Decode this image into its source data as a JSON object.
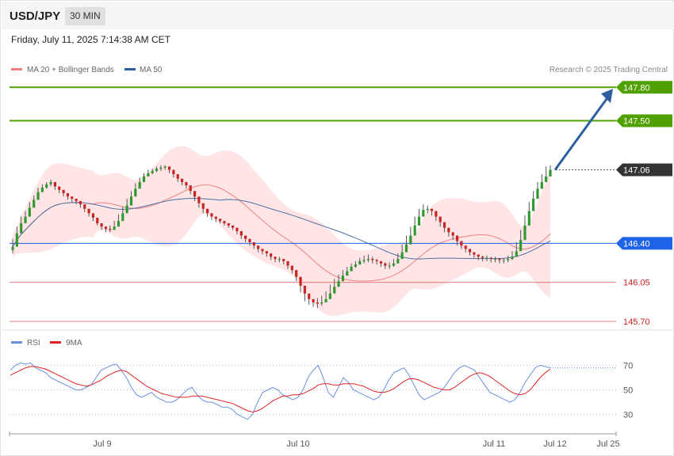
{
  "header": {
    "symbol": "USD/JPY",
    "interval": "30 MIN"
  },
  "datetime": "Friday, July 11, 2025 7:14:38 AM CET",
  "legend": {
    "ma20": "MA 20 + Bollinger Bands",
    "ma50": "MA 50",
    "credit": "Research © 2025 Trading Central"
  },
  "colors": {
    "up": "#2e9a2e",
    "down": "#cc2222",
    "band": "#ffe0e0",
    "ma20": "#f08080",
    "ma50": "#4a6fa5",
    "target": "#4fa000",
    "current": "#333333",
    "pivot": "#1e62e8",
    "support": "#e06060",
    "arrow": "#2e5fa0",
    "rsi": "#6a8fe0",
    "rsi_ma": "#dd2222"
  },
  "rsi_legend": {
    "rsi": "RSI",
    "ma": "9MA"
  },
  "chart_data": {
    "type": "candlestick",
    "x_ticks": [
      "Jul 9",
      "Jul 10",
      "Jul 11",
      "Jul 12",
      "Jul 25"
    ],
    "ylim": [
      145.65,
      147.88
    ],
    "levels": [
      {
        "label": "147.80",
        "value": 147.8,
        "kind": "target"
      },
      {
        "label": "147.50",
        "value": 147.5,
        "kind": "target"
      },
      {
        "label": "147.06",
        "value": 147.06,
        "kind": "current"
      },
      {
        "label": "146.40",
        "value": 146.4,
        "kind": "pivot"
      },
      {
        "label": "146.05",
        "value": 146.05,
        "kind": "support"
      },
      {
        "label": "145.70",
        "value": 145.7,
        "kind": "support"
      }
    ],
    "close": [
      146.37,
      146.49,
      146.58,
      146.64,
      146.72,
      146.79,
      146.86,
      146.9,
      146.93,
      146.95,
      146.91,
      146.88,
      146.85,
      146.82,
      146.8,
      146.78,
      146.75,
      146.71,
      146.67,
      146.63,
      146.58,
      146.55,
      146.53,
      146.52,
      146.55,
      146.6,
      146.67,
      146.74,
      146.82,
      146.89,
      146.95,
      147.0,
      147.03,
      147.05,
      147.07,
      147.08,
      147.09,
      147.06,
      147.02,
      146.98,
      146.95,
      146.92,
      146.87,
      146.82,
      146.76,
      146.71,
      146.67,
      146.64,
      146.62,
      146.6,
      146.58,
      146.56,
      146.54,
      146.51,
      146.47,
      146.44,
      146.41,
      146.38,
      146.35,
      146.33,
      146.31,
      146.28,
      146.26,
      146.26,
      146.24,
      146.2,
      146.16,
      146.1,
      146.02,
      145.95,
      145.9,
      145.87,
      145.86,
      145.87,
      145.9,
      145.95,
      146.01,
      146.06,
      146.11,
      146.15,
      146.19,
      146.21,
      146.24,
      146.25,
      146.26,
      146.25,
      146.24,
      146.22,
      146.2,
      146.2,
      146.22,
      146.26,
      146.32,
      146.39,
      146.47,
      146.56,
      146.64,
      146.7,
      146.71,
      146.69,
      146.64,
      146.59,
      146.54,
      146.5,
      146.47,
      146.42,
      146.38,
      146.35,
      146.32,
      146.3,
      146.28,
      146.27,
      146.27,
      146.26,
      146.26,
      146.25,
      146.25,
      146.26,
      146.28,
      146.33,
      146.43,
      146.56,
      146.69,
      146.8,
      146.89,
      146.95,
      147.0,
      147.06
    ],
    "high": [
      146.44,
      146.55,
      146.64,
      146.69,
      146.77,
      146.83,
      146.9,
      146.93,
      146.95,
      146.97,
      146.93,
      146.9,
      146.87,
      146.84,
      146.82,
      146.8,
      146.77,
      146.73,
      146.69,
      146.65,
      146.6,
      146.57,
      146.55,
      146.56,
      146.6,
      146.66,
      146.73,
      146.8,
      146.87,
      146.94,
      146.99,
      147.03,
      147.06,
      147.07,
      147.09,
      147.1,
      147.1,
      147.07,
      147.03,
      147.0,
      146.96,
      146.94,
      146.89,
      146.84,
      146.78,
      146.73,
      146.69,
      146.66,
      146.64,
      146.62,
      146.6,
      146.58,
      146.56,
      146.53,
      146.49,
      146.46,
      146.43,
      146.4,
      146.37,
      146.35,
      146.33,
      146.3,
      146.28,
      146.28,
      146.26,
      146.22,
      146.18,
      146.12,
      146.04,
      145.97,
      145.92,
      145.89,
      145.91,
      145.93,
      145.97,
      146.03,
      146.08,
      146.12,
      146.16,
      146.19,
      146.22,
      146.24,
      146.27,
      146.29,
      146.3,
      146.28,
      146.26,
      146.24,
      146.23,
      146.23,
      146.26,
      146.31,
      146.39,
      146.47,
      146.55,
      146.64,
      146.71,
      146.75,
      146.74,
      146.71,
      146.66,
      146.61,
      146.56,
      146.52,
      146.49,
      146.44,
      146.4,
      146.37,
      146.34,
      146.32,
      146.3,
      146.29,
      146.29,
      146.28,
      146.28,
      146.27,
      146.27,
      146.29,
      146.33,
      146.41,
      146.52,
      146.65,
      146.77,
      146.87,
      146.95,
      147.02,
      147.09,
      147.1
    ],
    "low": [
      146.31,
      146.42,
      146.53,
      146.59,
      146.67,
      146.74,
      146.81,
      146.86,
      146.89,
      146.91,
      146.88,
      146.85,
      146.82,
      146.79,
      146.77,
      146.75,
      146.72,
      146.68,
      146.64,
      146.6,
      146.56,
      146.52,
      146.5,
      146.5,
      146.53,
      146.57,
      146.63,
      146.7,
      146.78,
      146.85,
      146.91,
      146.96,
      147.0,
      147.02,
      147.04,
      147.05,
      147.06,
      147.03,
      146.99,
      146.95,
      146.92,
      146.89,
      146.84,
      146.78,
      146.72,
      146.67,
      146.64,
      146.61,
      146.59,
      146.58,
      146.56,
      146.54,
      146.52,
      146.48,
      146.44,
      146.41,
      146.38,
      146.35,
      146.32,
      146.3,
      146.28,
      146.25,
      146.23,
      146.23,
      146.21,
      146.17,
      146.13,
      146.06,
      145.96,
      145.88,
      145.85,
      145.83,
      145.82,
      145.84,
      145.87,
      145.91,
      145.97,
      146.02,
      146.07,
      146.12,
      146.16,
      146.18,
      146.21,
      146.22,
      146.23,
      146.22,
      146.21,
      146.19,
      146.17,
      146.17,
      146.19,
      146.23,
      146.28,
      146.35,
      146.42,
      146.51,
      146.6,
      146.66,
      146.67,
      146.65,
      146.6,
      146.55,
      146.5,
      146.46,
      146.43,
      146.38,
      146.35,
      146.32,
      146.29,
      146.27,
      146.25,
      146.24,
      146.24,
      146.23,
      146.23,
      146.22,
      146.22,
      146.23,
      146.25,
      146.29,
      146.38,
      146.51,
      146.64,
      146.75,
      146.85,
      146.92,
      146.97,
      147.02
    ]
  },
  "rsi_data": {
    "ticks": [
      "70",
      "50",
      "30"
    ],
    "ylim": [
      20,
      80
    ],
    "rsi": [
      66,
      70,
      72,
      71,
      72,
      68,
      66,
      64,
      60,
      58,
      56,
      54,
      52,
      50,
      50,
      52,
      54,
      60,
      66,
      68,
      70,
      71,
      66,
      60,
      52,
      46,
      44,
      46,
      48,
      44,
      42,
      40,
      40,
      42,
      46,
      50,
      52,
      46,
      42,
      40,
      40,
      38,
      36,
      36,
      34,
      30,
      28,
      26,
      30,
      40,
      48,
      50,
      52,
      50,
      46,
      44,
      42,
      44,
      50,
      60,
      66,
      70,
      60,
      48,
      44,
      52,
      60,
      56,
      50,
      48,
      46,
      44,
      42,
      44,
      50,
      58,
      64,
      66,
      68,
      62,
      54,
      46,
      42,
      44,
      46,
      48,
      52,
      58,
      64,
      68,
      70,
      68,
      66,
      60,
      54,
      48,
      46,
      44,
      42,
      40,
      42,
      48,
      56,
      62,
      68,
      70,
      69,
      68
    ],
    "ma": [
      62,
      64,
      66,
      68,
      69,
      69,
      68,
      67,
      65,
      63,
      61,
      59,
      57,
      55,
      54,
      53,
      54,
      56,
      58,
      61,
      63,
      65,
      66,
      65,
      62,
      59,
      56,
      53,
      51,
      49,
      47,
      46,
      45,
      44,
      44,
      44,
      45,
      45,
      45,
      44,
      43,
      42,
      41,
      40,
      39,
      37,
      35,
      33,
      32,
      33,
      35,
      38,
      41,
      43,
      45,
      45,
      46,
      46,
      47,
      49,
      51,
      54,
      55,
      55,
      54,
      54,
      55,
      55,
      55,
      54,
      53,
      51,
      49,
      48,
      48,
      49,
      51,
      54,
      57,
      59,
      59,
      58,
      56,
      54,
      52,
      51,
      50,
      50,
      52,
      55,
      58,
      61,
      63,
      64,
      63,
      61,
      58,
      55,
      52,
      49,
      47,
      46,
      47,
      50,
      55,
      60,
      64,
      67
    ]
  }
}
